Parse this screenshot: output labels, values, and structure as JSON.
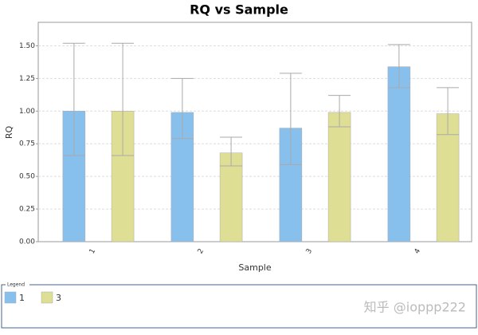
{
  "chart_data": {
    "type": "bar",
    "title": "RQ vs Sample",
    "x_label": "Sample",
    "y_label": "RQ",
    "categories": [
      "1",
      "2",
      "3",
      "4"
    ],
    "series": [
      {
        "name": "1",
        "color": "#87bfed",
        "values": [
          1.0,
          0.99,
          0.87,
          1.34
        ],
        "lower": [
          0.66,
          0.79,
          0.59,
          1.18
        ],
        "upper": [
          1.52,
          1.25,
          1.29,
          1.51
        ]
      },
      {
        "name": "3",
        "color": "#dede94",
        "values": [
          1.0,
          0.68,
          0.99,
          0.98
        ],
        "lower": [
          0.66,
          0.58,
          0.88,
          0.82
        ],
        "upper": [
          1.52,
          0.8,
          1.12,
          1.18
        ]
      }
    ],
    "ylim": [
      0,
      1.68
    ],
    "yticks": [
      {
        "value": 0,
        "label": "0.00"
      },
      {
        "value": 0.25,
        "label": "0.25"
      },
      {
        "value": 0.5,
        "label": "0.50"
      },
      {
        "value": 0.75,
        "label": "0.75"
      },
      {
        "value": 1,
        "label": "1.00"
      },
      {
        "value": 1.25,
        "label": "1.25"
      },
      {
        "value": 1.5,
        "label": "1.50"
      }
    ],
    "grid": true,
    "legend_title": "Legend",
    "watermark": "知乎 @ioppp222"
  }
}
